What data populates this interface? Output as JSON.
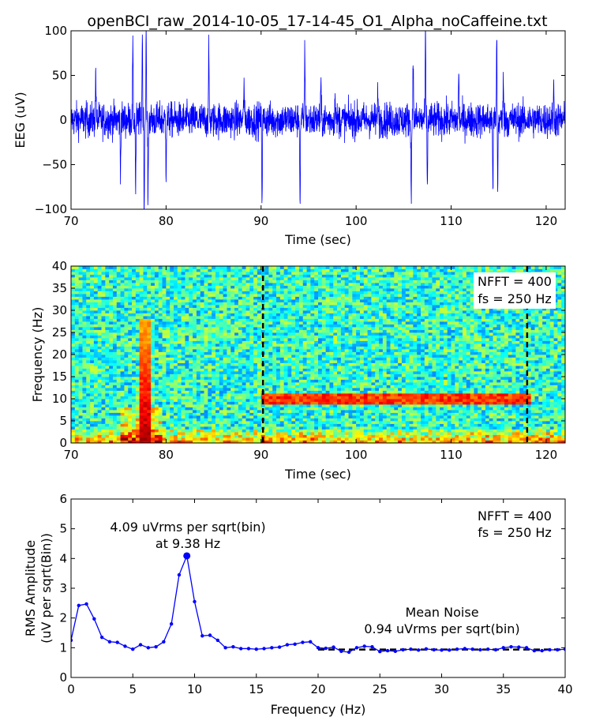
{
  "chart_data": [
    {
      "type": "line",
      "title": "openBCI_raw_2014-10-05_17-14-45_O1_Alpha_noCaffeine.txt",
      "xlabel": "Time (sec)",
      "ylabel": "EEG (uV)",
      "xlim": [
        70,
        122
      ],
      "ylim": [
        -100,
        100
      ],
      "xticks": [
        70,
        80,
        90,
        100,
        110,
        120
      ],
      "yticks": [
        -100,
        -50,
        0,
        50,
        100
      ],
      "color": "#0000ff",
      "baseline_noise_amplitude_uv": 18,
      "spikes": [
        {
          "t": 72.6,
          "v": 60
        },
        {
          "t": 75.2,
          "v": -60
        },
        {
          "t": 76.5,
          "v": 85
        },
        {
          "t": 76.8,
          "v": -80
        },
        {
          "t": 77.5,
          "v": 100
        },
        {
          "t": 77.7,
          "v": -100
        },
        {
          "t": 77.9,
          "v": 100
        },
        {
          "t": 78.1,
          "v": -95
        },
        {
          "t": 80.0,
          "v": -55
        },
        {
          "t": 84.5,
          "v": 80
        },
        {
          "t": 88.2,
          "v": 48
        },
        {
          "t": 90.1,
          "v": -92
        },
        {
          "t": 94.1,
          "v": -100
        },
        {
          "t": 94.6,
          "v": 90
        },
        {
          "t": 96.3,
          "v": 42
        },
        {
          "t": 97.8,
          "v": 38
        },
        {
          "t": 102.3,
          "v": 40
        },
        {
          "t": 105.8,
          "v": -97
        },
        {
          "t": 106.0,
          "v": 78
        },
        {
          "t": 107.3,
          "v": 100
        },
        {
          "t": 107.5,
          "v": -80
        },
        {
          "t": 110.8,
          "v": 58
        },
        {
          "t": 114.4,
          "v": -75
        },
        {
          "t": 114.8,
          "v": 100
        },
        {
          "t": 114.9,
          "v": -85
        },
        {
          "t": 115.5,
          "v": 55
        },
        {
          "t": 120.8,
          "v": 35
        }
      ]
    },
    {
      "type": "heatmap",
      "xlabel": "Time (sec)",
      "ylabel": "Frequency (Hz)",
      "xlim": [
        70,
        122
      ],
      "ylim": [
        0,
        40
      ],
      "xticks": [
        70,
        80,
        90,
        100,
        110,
        120
      ],
      "yticks": [
        0,
        5,
        10,
        15,
        20,
        25,
        30,
        35,
        40
      ],
      "colormap": "jet",
      "annotation": [
        "NFFT = 400",
        "fs = 250 Hz"
      ],
      "dashed_markers_x": [
        90.2,
        118.0
      ],
      "features": [
        {
          "name": "artifact",
          "t_range": [
            77.2,
            78.3
          ],
          "f_range": [
            0,
            28
          ],
          "level": 0.95
        },
        {
          "name": "alpha-band",
          "t_range": [
            90,
            118
          ],
          "f_center": 9.5,
          "level": 0.82
        },
        {
          "name": "low-frequency",
          "f_range": [
            0,
            3
          ],
          "level": 0.65
        }
      ]
    },
    {
      "type": "line",
      "xlabel": "Frequency (Hz)",
      "ylabel": [
        "RMS Amplitude",
        "(uV per sqrt(Bin))"
      ],
      "xlim": [
        0,
        40
      ],
      "ylim": [
        0,
        6
      ],
      "xticks": [
        0,
        5,
        10,
        15,
        20,
        25,
        30,
        35,
        40
      ],
      "yticks": [
        0,
        1,
        2,
        3,
        4,
        5,
        6
      ],
      "color": "#0000ff",
      "x": [
        0,
        0.625,
        1.25,
        1.875,
        2.5,
        3.125,
        3.75,
        4.375,
        5,
        5.625,
        6.25,
        6.875,
        7.5,
        8.125,
        8.75,
        9.375,
        10,
        10.625,
        11.25,
        11.875,
        12.5,
        13.125,
        13.75,
        14.375,
        15,
        15.625,
        16.25,
        16.875,
        17.5,
        18.125,
        18.75,
        19.375,
        20,
        20.625,
        21.25,
        21.875,
        22.5,
        23.125,
        23.75,
        24.375,
        25,
        25.625,
        26.25,
        26.875,
        27.5,
        28.125,
        28.75,
        29.375,
        30,
        30.625,
        31.25,
        31.875,
        32.5,
        33.125,
        33.75,
        34.375,
        35,
        35.625,
        36.25,
        36.875,
        37.5,
        38.125,
        38.75,
        39.375,
        40
      ],
      "y": [
        1.25,
        2.42,
        2.47,
        1.97,
        1.35,
        1.2,
        1.18,
        1.05,
        0.95,
        1.1,
        1.0,
        1.03,
        1.2,
        1.8,
        3.45,
        4.09,
        2.55,
        1.4,
        1.42,
        1.25,
        1.0,
        1.03,
        0.97,
        0.97,
        0.95,
        0.97,
        1.0,
        1.02,
        1.1,
        1.12,
        1.18,
        1.2,
        1.0,
        0.98,
        1.02,
        0.88,
        0.85,
        1.0,
        1.05,
        1.03,
        0.87,
        0.9,
        0.88,
        0.93,
        0.95,
        0.92,
        0.96,
        0.93,
        0.92,
        0.92,
        0.95,
        0.97,
        0.95,
        0.93,
        0.95,
        0.93,
        1.0,
        1.03,
        1.02,
        1.0,
        0.9,
        0.9,
        0.93,
        0.93,
        0.95
      ],
      "peak": {
        "x": 9.375,
        "y": 4.09,
        "label": [
          "4.09 uVrms per sqrt(bin)",
          "at 9.38 Hz"
        ]
      },
      "mean_noise": {
        "y": 0.94,
        "x_range": [
          20,
          40
        ],
        "label": [
          "Mean Noise",
          "0.94 uVrms per sqrt(bin)"
        ]
      },
      "annotation": [
        "NFFT = 400",
        "fs = 250 Hz"
      ]
    }
  ]
}
